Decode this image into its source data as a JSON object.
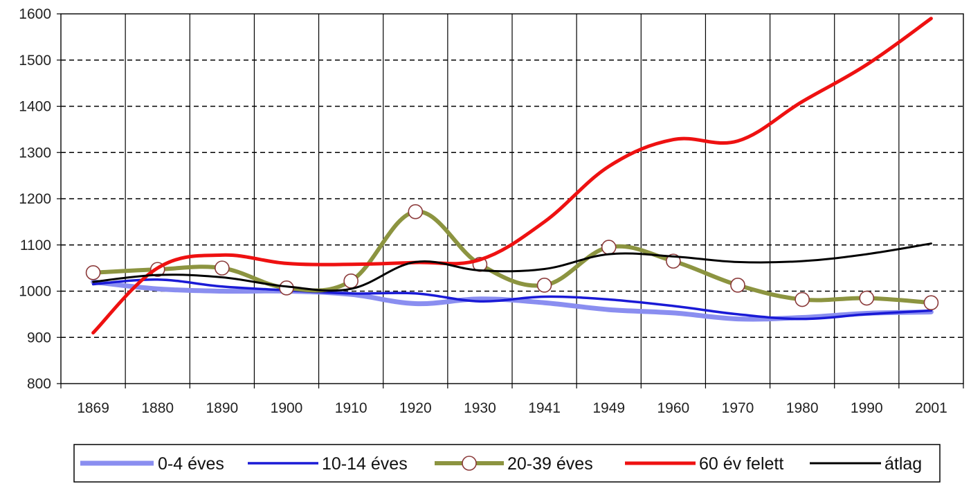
{
  "chart_data": {
    "type": "line",
    "categories": [
      "1869",
      "1880",
      "1890",
      "1900",
      "1910",
      "1920",
      "1930",
      "1941",
      "1949",
      "1960",
      "1970",
      "1980",
      "1990",
      "2001"
    ],
    "title": "",
    "xlabel": "",
    "ylabel": "",
    "ylim": [
      800,
      1600
    ],
    "yticks": [
      800,
      900,
      1000,
      1100,
      1200,
      1300,
      1400,
      1500,
      1600
    ],
    "grid": {
      "horizontal": "dashed",
      "vertical": "solid"
    },
    "legend_position": "bottom",
    "series": [
      {
        "name": "0-4 éves",
        "color": "#8a8ef0",
        "width": 7,
        "marker": false,
        "values": [
          1020,
          1005,
          1000,
          1000,
          993,
          973,
          983,
          975,
          960,
          953,
          940,
          943,
          952,
          955
        ]
      },
      {
        "name": "10-14 éves",
        "color": "#1a1ad6",
        "width": 3.5,
        "marker": false,
        "values": [
          1015,
          1025,
          1010,
          1002,
          995,
          995,
          978,
          988,
          982,
          968,
          950,
          940,
          950,
          958
        ]
      },
      {
        "name": "20-39 éves",
        "color": "#8c9440",
        "width": 6,
        "marker": true,
        "values": [
          1040,
          1047,
          1050,
          1007,
          1022,
          1172,
          1058,
          1013,
          1095,
          1065,
          1013,
          982,
          985,
          975
        ]
      },
      {
        "name": "60 év felett",
        "color": "#ee1111",
        "width": 5,
        "marker": false,
        "values": [
          910,
          1050,
          1078,
          1060,
          1058,
          1062,
          1068,
          1150,
          1270,
          1328,
          1325,
          1410,
          1490,
          1590
        ]
      },
      {
        "name": "átlag",
        "color": "#000000",
        "width": 3,
        "marker": false,
        "values": [
          1020,
          1035,
          1030,
          1010,
          1005,
          1063,
          1045,
          1048,
          1080,
          1075,
          1063,
          1065,
          1080,
          1103
        ]
      }
    ]
  }
}
